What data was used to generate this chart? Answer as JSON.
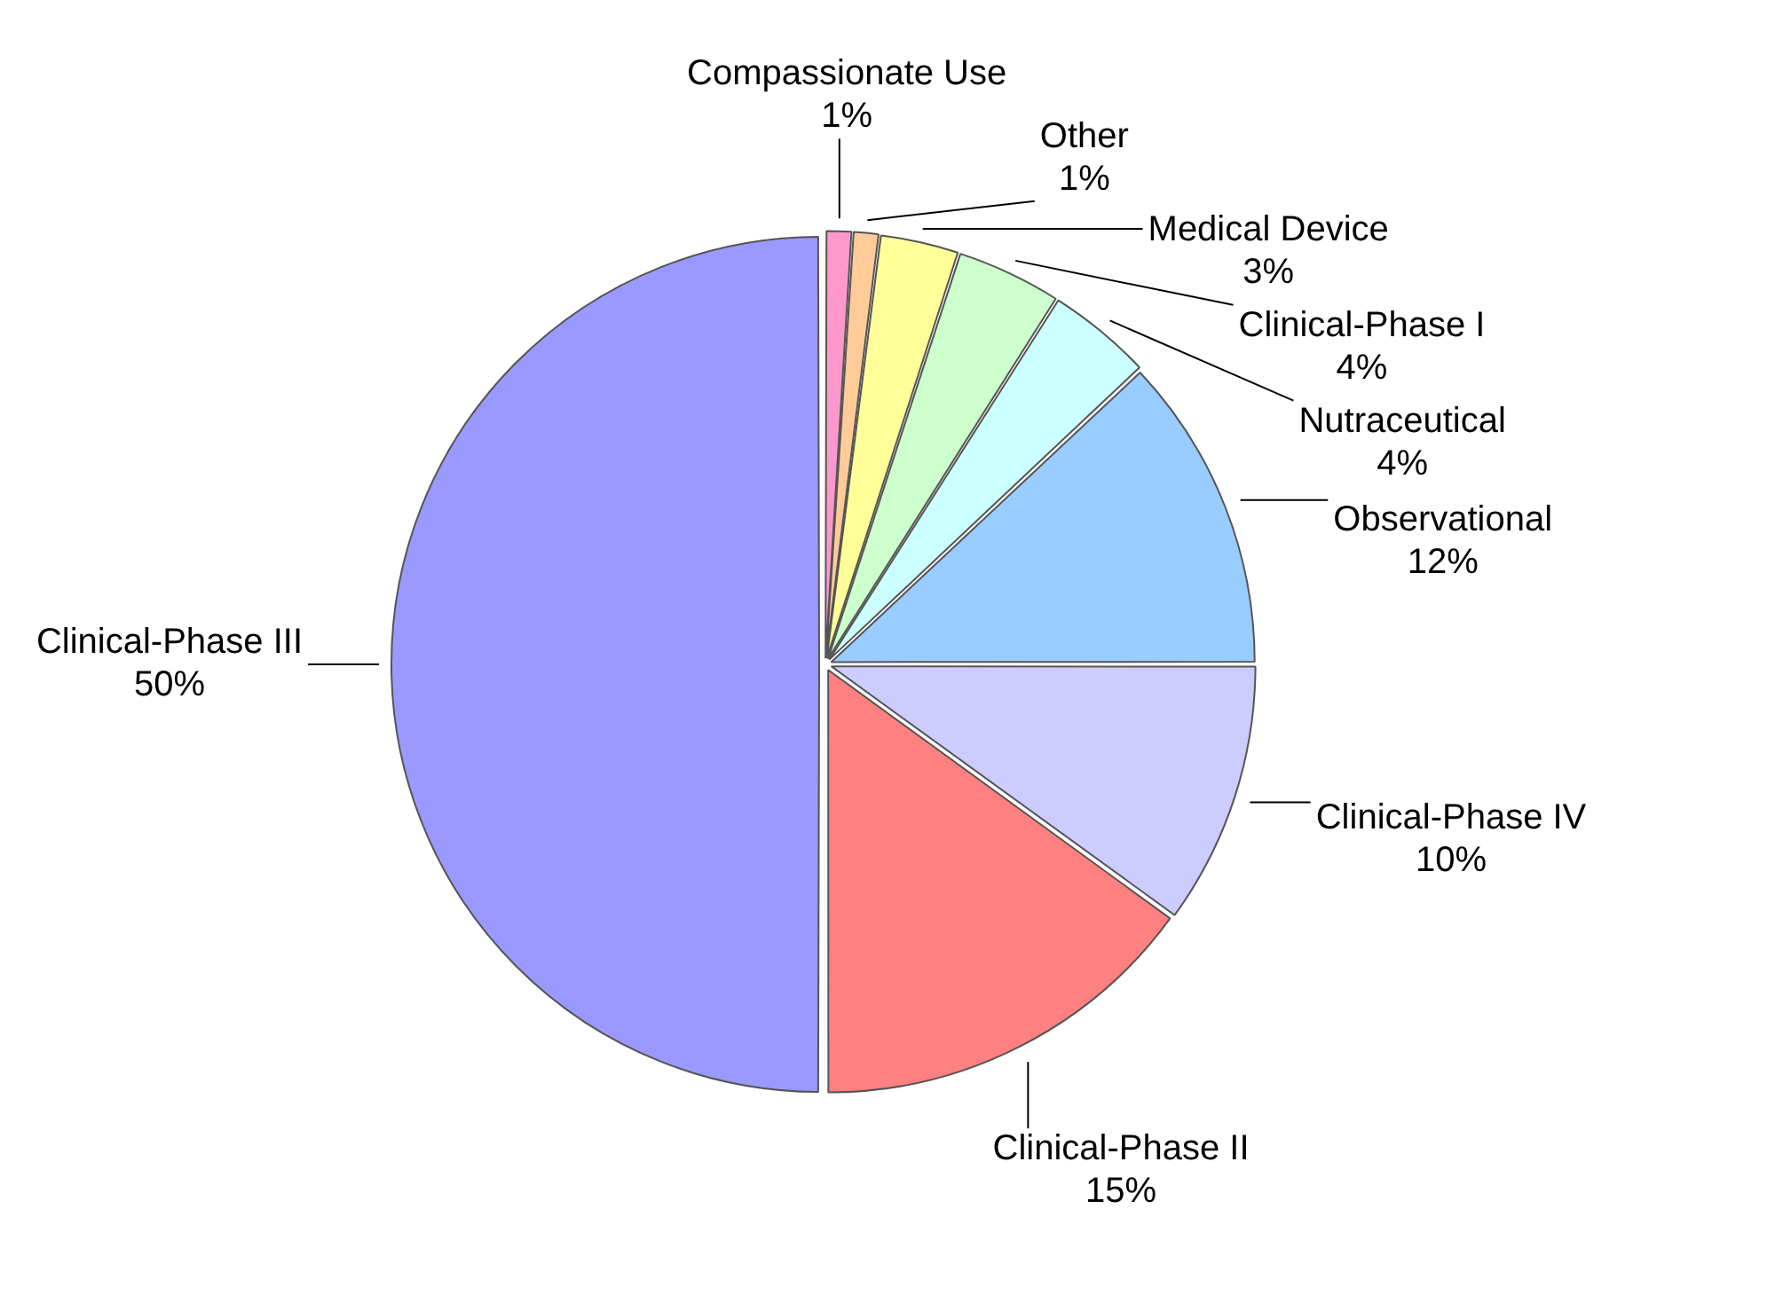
{
  "chart_data": {
    "type": "pie",
    "categories": [
      "Compassionate Use",
      "Other",
      "Medical Device",
      "Clinical-Phase I",
      "Nutraceutical",
      "Observational",
      "Clinical-Phase IV",
      "Clinical-Phase II",
      "Clinical-Phase III"
    ],
    "values": [
      1,
      1,
      3,
      4,
      4,
      12,
      10,
      15,
      50
    ],
    "value_labels": [
      "1%",
      "1%",
      "3%",
      "4%",
      "4%",
      "12%",
      "10%",
      "15%",
      "50%"
    ],
    "colors": [
      "#ff99cc",
      "#ffcc99",
      "#ffff99",
      "#ccffcc",
      "#ccffff",
      "#99ccff",
      "#ccccff",
      "#ff8080",
      "#9999ff"
    ],
    "legend": false
  }
}
